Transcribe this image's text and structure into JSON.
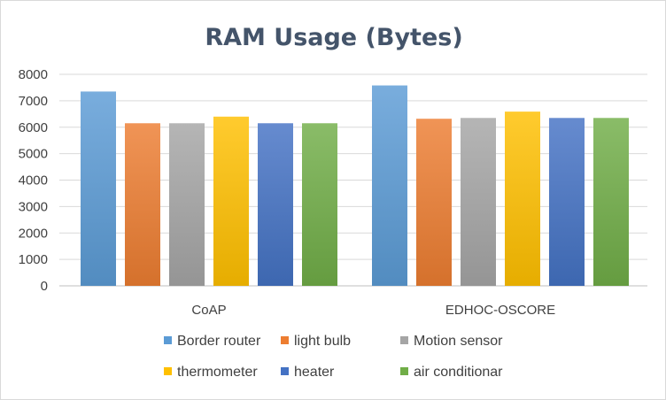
{
  "chart_data": {
    "type": "bar",
    "title": "RAM Usage (Bytes)",
    "categories": [
      "CoAP",
      "EDHOC-OSCORE"
    ],
    "ylim": [
      0,
      8000
    ],
    "yticks": [
      0,
      1000,
      2000,
      3000,
      4000,
      5000,
      6000,
      7000,
      8000
    ],
    "grid": true,
    "legend_position": "bottom",
    "series": [
      {
        "name": "Border router",
        "color": "#5b9bd5",
        "values": [
          7350,
          7580
        ]
      },
      {
        "name": "light bulb",
        "color": "#ed7d31",
        "values": [
          6150,
          6320
        ]
      },
      {
        "name": "Motion sensor",
        "color": "#a5a5a5",
        "values": [
          6150,
          6350
        ]
      },
      {
        "name": "thermometer",
        "color": "#ffc000",
        "values": [
          6400,
          6590
        ]
      },
      {
        "name": "heater",
        "color": "#4472c4",
        "values": [
          6150,
          6350
        ]
      },
      {
        "name": "air conditionar",
        "color": "#70ad47",
        "values": [
          6150,
          6350
        ]
      }
    ]
  }
}
